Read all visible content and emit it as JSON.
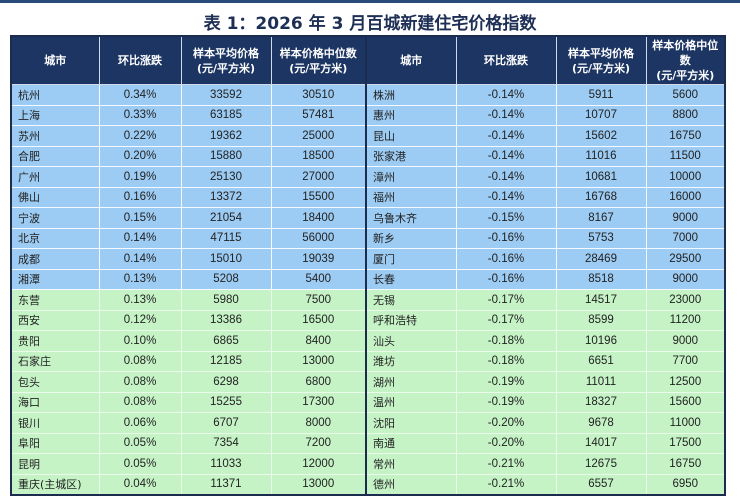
{
  "title": "表 1：2026 年 3 月百城新建住宅价格指数",
  "headers": [
    "城市",
    "环比涨跌",
    "样本平均价格\n(元/平方米)",
    "样本价格中位数\n(元/平方米)"
  ],
  "colors": {
    "header": "#1c3563",
    "group_top": "#9ccbf3",
    "group_bottom": "#c5f3c6"
  },
  "rows": [
    {
      "group": "blue",
      "left": [
        "杭州",
        "0.34%",
        "33592",
        "30510"
      ],
      "right": [
        "株洲",
        "-0.14%",
        "5911",
        "5600"
      ]
    },
    {
      "group": "blue",
      "left": [
        "上海",
        "0.33%",
        "63185",
        "57481"
      ],
      "right": [
        "惠州",
        "-0.14%",
        "10707",
        "8800"
      ]
    },
    {
      "group": "blue",
      "left": [
        "苏州",
        "0.22%",
        "19362",
        "25000"
      ],
      "right": [
        "昆山",
        "-0.14%",
        "15602",
        "16750"
      ]
    },
    {
      "group": "blue",
      "left": [
        "合肥",
        "0.20%",
        "15880",
        "18500"
      ],
      "right": [
        "张家港",
        "-0.14%",
        "11016",
        "11500"
      ]
    },
    {
      "group": "blue",
      "left": [
        "广州",
        "0.19%",
        "25130",
        "27000"
      ],
      "right": [
        "漳州",
        "-0.14%",
        "10681",
        "10000"
      ]
    },
    {
      "group": "blue",
      "left": [
        "佛山",
        "0.16%",
        "13372",
        "15500"
      ],
      "right": [
        "福州",
        "-0.14%",
        "16768",
        "16000"
      ]
    },
    {
      "group": "blue",
      "left": [
        "宁波",
        "0.15%",
        "21054",
        "18400"
      ],
      "right": [
        "乌鲁木齐",
        "-0.15%",
        "8167",
        "9000"
      ]
    },
    {
      "group": "blue",
      "left": [
        "北京",
        "0.14%",
        "47115",
        "56000"
      ],
      "right": [
        "新乡",
        "-0.16%",
        "5753",
        "7000"
      ]
    },
    {
      "group": "blue",
      "left": [
        "成都",
        "0.14%",
        "15010",
        "19039"
      ],
      "right": [
        "厦门",
        "-0.16%",
        "28469",
        "29500"
      ]
    },
    {
      "group": "blue",
      "left": [
        "湘潭",
        "0.13%",
        "5208",
        "5400"
      ],
      "right": [
        "长春",
        "-0.16%",
        "8518",
        "9000"
      ]
    },
    {
      "group": "green",
      "left": [
        "东营",
        "0.13%",
        "5980",
        "7500"
      ],
      "right": [
        "无锡",
        "-0.17%",
        "14517",
        "23000"
      ]
    },
    {
      "group": "green",
      "left": [
        "西安",
        "0.12%",
        "13386",
        "16500"
      ],
      "right": [
        "呼和浩特",
        "-0.17%",
        "8599",
        "11200"
      ]
    },
    {
      "group": "green",
      "left": [
        "贵阳",
        "0.10%",
        "6865",
        "8400"
      ],
      "right": [
        "汕头",
        "-0.18%",
        "10196",
        "9000"
      ]
    },
    {
      "group": "green",
      "left": [
        "石家庄",
        "0.08%",
        "12185",
        "13000"
      ],
      "right": [
        "潍坊",
        "-0.18%",
        "6651",
        "7700"
      ]
    },
    {
      "group": "green",
      "left": [
        "包头",
        "0.08%",
        "6298",
        "6800"
      ],
      "right": [
        "湖州",
        "-0.19%",
        "11011",
        "12500"
      ]
    },
    {
      "group": "green",
      "left": [
        "海口",
        "0.08%",
        "15255",
        "17300"
      ],
      "right": [
        "温州",
        "-0.19%",
        "18327",
        "15600"
      ]
    },
    {
      "group": "green",
      "left": [
        "银川",
        "0.06%",
        "6707",
        "8000"
      ],
      "right": [
        "沈阳",
        "-0.20%",
        "9678",
        "11000"
      ]
    },
    {
      "group": "green",
      "left": [
        "阜阳",
        "0.05%",
        "7354",
        "7200"
      ],
      "right": [
        "南通",
        "-0.20%",
        "14017",
        "17500"
      ]
    },
    {
      "group": "green",
      "left": [
        "昆明",
        "0.05%",
        "11033",
        "12000"
      ],
      "right": [
        "常州",
        "-0.21%",
        "12675",
        "16750"
      ]
    },
    {
      "group": "green",
      "left": [
        "重庆(主城区)",
        "0.04%",
        "11371",
        "13000"
      ],
      "right": [
        "德州",
        "-0.21%",
        "6557",
        "6950"
      ]
    }
  ]
}
